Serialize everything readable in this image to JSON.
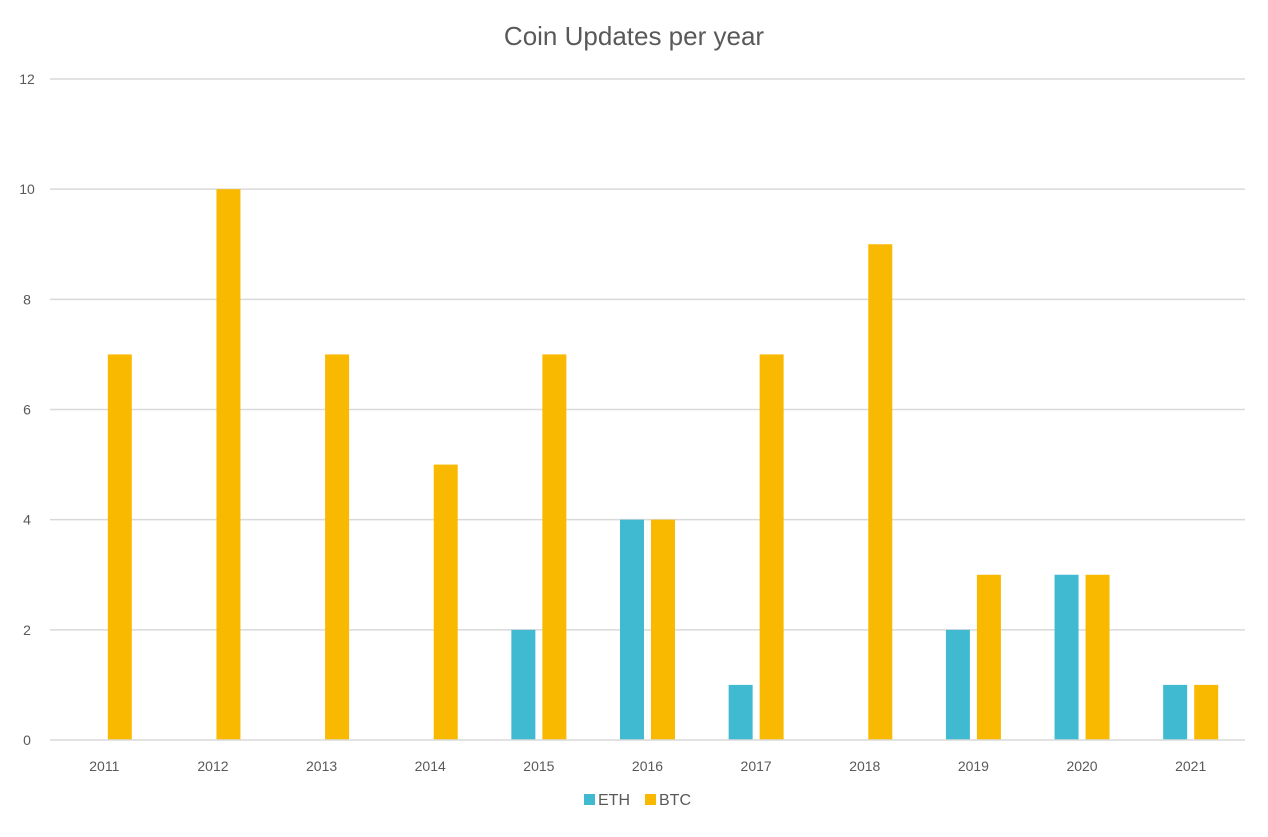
{
  "chart_data": {
    "type": "bar",
    "title": "Coin Updates per year",
    "xlabel": "",
    "ylabel": "",
    "categories": [
      "2011",
      "2012",
      "2013",
      "2014",
      "2015",
      "2016",
      "2017",
      "2018",
      "2019",
      "2020",
      "2021"
    ],
    "series": [
      {
        "name": "ETH",
        "color": "#3FBAD1",
        "values": [
          0,
          0,
          0,
          0,
          2,
          4,
          1,
          0,
          2,
          3,
          1
        ]
      },
      {
        "name": "BTC",
        "color": "#FAB901",
        "values": [
          7,
          10,
          7,
          5,
          7,
          4,
          7,
          9,
          3,
          3,
          1
        ]
      }
    ],
    "ylim": [
      0,
      12
    ],
    "yticks": [
      "0",
      "2",
      "4",
      "6",
      "8",
      "10",
      "12"
    ],
    "grid": true,
    "gridColor": "#D9D9D9",
    "legend_position": "bottom"
  }
}
